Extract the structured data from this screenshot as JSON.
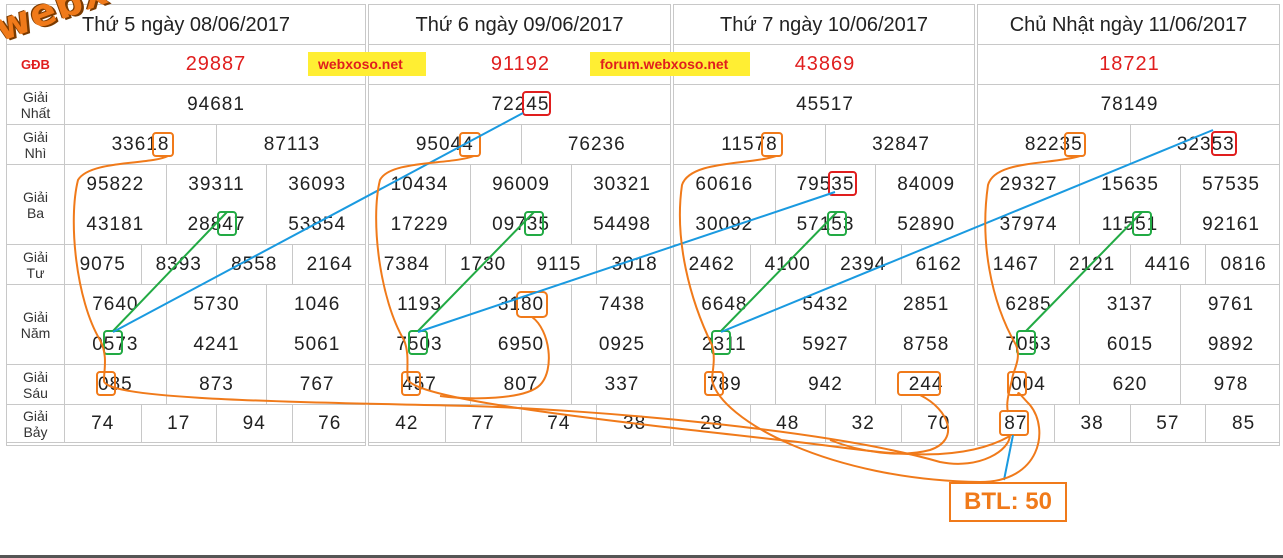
{
  "labels": {
    "gdb": "GĐB",
    "nhat": "Giải\nNhất",
    "nhi": "Giải\nNhì",
    "ba": "Giải\nBa",
    "tu": "Giải\nTư",
    "nam": "Giải\nNăm",
    "sau": "Giải\nSáu",
    "bay": "Giải\nBảy"
  },
  "watermark": "webxoso.net",
  "ads": [
    "webxoso.net",
    "forum.webxoso.net"
  ],
  "btl": "BTL: 50",
  "colors": {
    "red": "#e01e1e",
    "orange": "#f07a1a",
    "green": "#22aa44",
    "blue": "#1a9ae0"
  },
  "days": [
    {
      "title": "Thứ 5 ngày 08/06/2017",
      "gdb": "29887",
      "nhat": "94681",
      "nhi": [
        "33618",
        "87113"
      ],
      "ba": [
        "95822",
        "39311",
        "36093",
        "43181",
        "28847",
        "53854"
      ],
      "tu": [
        "9075",
        "8393",
        "8558",
        "2164"
      ],
      "nam": [
        "7640",
        "5730",
        "1046",
        "0573",
        "4241",
        "5061"
      ],
      "sau": [
        "085",
        "873",
        "767"
      ],
      "bay": [
        "74",
        "17",
        "94",
        "76"
      ]
    },
    {
      "title": "Thứ 6 ngày 09/06/2017",
      "gdb": "91192",
      "nhat": "72245",
      "nhi": [
        "95044",
        "76236"
      ],
      "ba": [
        "10434",
        "96009",
        "30321",
        "17229",
        "09735",
        "54498"
      ],
      "tu": [
        "7384",
        "1730",
        "9115",
        "3018"
      ],
      "nam": [
        "1193",
        "3180",
        "7438",
        "7503",
        "6950",
        "0925"
      ],
      "sau": [
        "457",
        "807",
        "337"
      ],
      "bay": [
        "42",
        "77",
        "74",
        "38"
      ]
    },
    {
      "title": "Thứ 7 ngày 10/06/2017",
      "gdb": "43869",
      "nhat": "45517",
      "nhi": [
        "11578",
        "32847"
      ],
      "ba": [
        "60616",
        "79535",
        "84009",
        "30092",
        "57153",
        "52890"
      ],
      "tu": [
        "2462",
        "4100",
        "2394",
        "6162"
      ],
      "nam": [
        "6648",
        "5432",
        "2851",
        "2311",
        "5927",
        "8758"
      ],
      "sau": [
        "789",
        "942",
        "244"
      ],
      "bay": [
        "28",
        "48",
        "32",
        "70"
      ]
    },
    {
      "title": "Chủ Nhật ngày 11/06/2017",
      "gdb": "18721",
      "nhat": "78149",
      "nhi": [
        "82235",
        "32353"
      ],
      "ba": [
        "29327",
        "15635",
        "57535",
        "37974",
        "11551",
        "92161"
      ],
      "tu": [
        "1467",
        "2121",
        "4416",
        "0816"
      ],
      "nam": [
        "6285",
        "3137",
        "9761",
        "7053",
        "6015",
        "9892"
      ],
      "sau": [
        "004",
        "620",
        "978"
      ],
      "bay": [
        "87",
        "38",
        "57",
        "85"
      ]
    }
  ]
}
